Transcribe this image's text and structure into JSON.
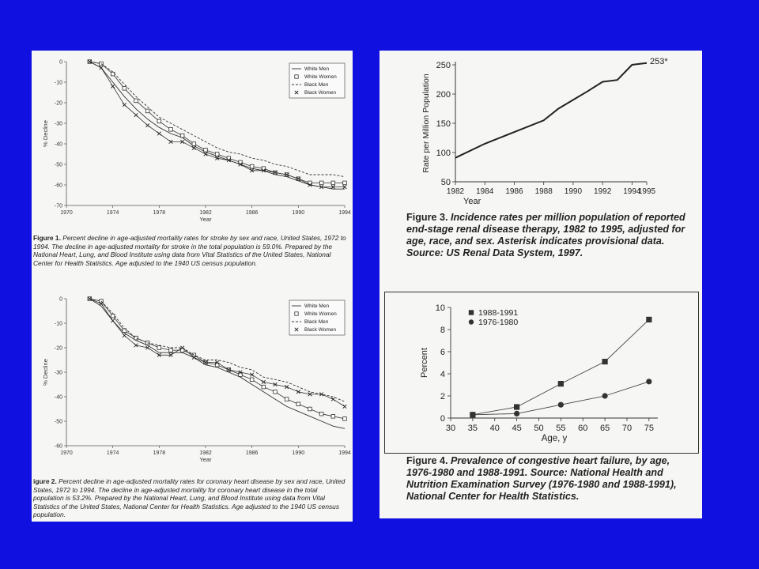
{
  "chart_data": [
    {
      "type": "line",
      "xlabel": "Year",
      "ylabel": "% Decline",
      "xticks": [
        "1970",
        "1974",
        "1978",
        "1982",
        "1986",
        "1990",
        "1994"
      ],
      "yticks": [
        "0",
        "-10",
        "-20",
        "-30",
        "-40",
        "-50",
        "-60",
        "-70"
      ],
      "xlim": [
        1970,
        1994
      ],
      "ylim": [
        -70,
        0
      ],
      "legend_position": "top-right",
      "x": [
        1972,
        1973,
        1974,
        1975,
        1976,
        1977,
        1978,
        1979,
        1980,
        1981,
        1982,
        1983,
        1984,
        1985,
        1986,
        1987,
        1988,
        1989,
        1990,
        1991,
        1992,
        1993,
        1994
      ],
      "series": [
        {
          "name": "White Men",
          "style": "solid",
          "values": [
            0,
            -3,
            -10,
            -17,
            -23,
            -28,
            -32,
            -35,
            -37,
            -41,
            -44,
            -46,
            -48,
            -50,
            -52,
            -53,
            -55,
            -56,
            -58,
            -60,
            -61,
            -62,
            -62
          ]
        },
        {
          "name": "White Women",
          "style": "square",
          "values": [
            0,
            -1,
            -6,
            -13,
            -19,
            -24,
            -29,
            -33,
            -36,
            -40,
            -43,
            -45,
            -47,
            -49,
            -51,
            -52,
            -54,
            -55,
            -57,
            -59,
            -59,
            -59,
            -59
          ]
        },
        {
          "name": "Black Men",
          "style": "dashed",
          "values": [
            0,
            -1,
            -5,
            -11,
            -17,
            -22,
            -27,
            -30,
            -33,
            -36,
            -39,
            -42,
            -44,
            -45,
            -47,
            -48,
            -50,
            -51,
            -53,
            -55,
            -55,
            -55,
            -56
          ]
        },
        {
          "name": "Black Women",
          "style": "x",
          "values": [
            0,
            -3,
            -12,
            -21,
            -26,
            -31,
            -35,
            -39,
            -39,
            -42,
            -45,
            -47,
            -48,
            -50,
            -53,
            -53,
            -54,
            -55,
            -57,
            -60,
            -61,
            -61,
            -61
          ]
        }
      ],
      "caption_label": "Figure 1.",
      "caption_text": "Percent decline in age-adjusted mortality rates for stroke by sex and race, United States, 1972 to 1994. The decline in age-adjusted mortality for stroke in the total population is 59.0%. Prepared by the National Heart, Lung, and Blood Institute using data from Vital Statistics of the United States, National Center for Health Statistics. Age adjusted to the 1940 US census population."
    },
    {
      "type": "line",
      "xlabel": "Year",
      "ylabel": "% Decline",
      "xticks": [
        "1970",
        "1974",
        "1978",
        "1982",
        "1986",
        "1990",
        "1994"
      ],
      "yticks": [
        "0",
        "-10",
        "-20",
        "-30",
        "-40",
        "-50",
        "-60"
      ],
      "xlim": [
        1970,
        1994
      ],
      "ylim": [
        -60,
        0
      ],
      "legend_position": "top-right",
      "x": [
        1972,
        1973,
        1974,
        1975,
        1976,
        1977,
        1978,
        1979,
        1980,
        1981,
        1982,
        1983,
        1984,
        1985,
        1986,
        1987,
        1988,
        1989,
        1990,
        1991,
        1992,
        1993,
        1994
      ],
      "series": [
        {
          "name": "White Men",
          "style": "solid",
          "values": [
            0,
            -3,
            -9,
            -14,
            -17,
            -19,
            -22,
            -22,
            -22,
            -24,
            -27,
            -28,
            -30,
            -32,
            -35,
            -38,
            -41,
            -44,
            -46,
            -48,
            -50,
            -52,
            -53
          ]
        },
        {
          "name": "White Women",
          "style": "square",
          "values": [
            0,
            -1,
            -7,
            -13,
            -16,
            -18,
            -20,
            -21,
            -21,
            -23,
            -26,
            -27,
            -29,
            -31,
            -33,
            -36,
            -38,
            -41,
            -43,
            -45,
            -47,
            -48,
            -49
          ]
        },
        {
          "name": "Black Men",
          "style": "dashed",
          "values": [
            0,
            -1,
            -6,
            -12,
            -16,
            -18,
            -19,
            -20,
            -20,
            -23,
            -25,
            -25,
            -26,
            -28,
            -29,
            -32,
            -33,
            -34,
            -36,
            -38,
            -39,
            -40,
            -42
          ]
        },
        {
          "name": "Black Women",
          "style": "x",
          "values": [
            0,
            -2,
            -9,
            -15,
            -19,
            -20,
            -23,
            -23,
            -20,
            -24,
            -26,
            -26,
            -29,
            -30,
            -31,
            -34,
            -35,
            -36,
            -38,
            -39,
            -39,
            -41,
            -44
          ]
        }
      ],
      "caption_label": "igure 2.",
      "caption_text": "Percent decline in age-adjusted mortality rates for coronary heart disease by sex and race, United States, 1972 to 1994. The decline in age-adjusted mortality for coronary heart disease in the total population is 53.2%. Prepared by the National Heart, Lung, and Blood Institute using data from Vital Statistics of the United States, National Center for Health Statistics. Age adjusted to the 1940 US census population."
    },
    {
      "type": "line",
      "xlabel": "Year",
      "ylabel": "Rate per Million Population",
      "xticks": [
        "1982",
        "1984",
        "1986",
        "1988",
        "1990",
        "1992",
        "1994",
        "1995"
      ],
      "yticks": [
        "50",
        "100",
        "150",
        "200",
        "250"
      ],
      "xlim": [
        1982,
        1995
      ],
      "ylim": [
        50,
        250
      ],
      "x": [
        1982,
        1984,
        1986,
        1988,
        1989,
        1990,
        1991,
        1992,
        1993,
        1994,
        1995
      ],
      "values": [
        91,
        115,
        135,
        155,
        175,
        190,
        205,
        221,
        224,
        250,
        253
      ],
      "end_label": "253*",
      "caption_label": "Figure 3.",
      "caption_text": "Incidence rates per million population of reported end-stage renal disease therapy, 1982 to 1995, adjusted for age, race, and sex. Asterisk indicates provisional data. Source: US Renal Data System, 1997."
    },
    {
      "type": "line",
      "xlabel": "Age, y",
      "ylabel": "Percent",
      "xticks": [
        "30",
        "35",
        "40",
        "45",
        "50",
        "55",
        "60",
        "65",
        "70",
        "75"
      ],
      "yticks": [
        "0",
        "2",
        "4",
        "6",
        "8",
        "10"
      ],
      "xlim": [
        30,
        77
      ],
      "ylim": [
        0,
        10
      ],
      "legend_position": "top-left",
      "x": [
        35,
        45,
        55,
        65,
        75
      ],
      "series": [
        {
          "name": "1988-1991",
          "marker": "square",
          "values": [
            0.3,
            1.0,
            3.1,
            5.1,
            8.9
          ]
        },
        {
          "name": "1976-1980",
          "marker": "circle",
          "values": [
            0.3,
            0.4,
            1.2,
            2.0,
            3.3
          ]
        }
      ],
      "caption_label": "Figure 4.",
      "caption_text": "Prevalence of congestive heart failure, by age, 1976-1980 and 1988-1991. Source: National Health and Nutrition Examination Survey (1976-1980 and 1988-1991), National Center for Health Statistics."
    }
  ]
}
